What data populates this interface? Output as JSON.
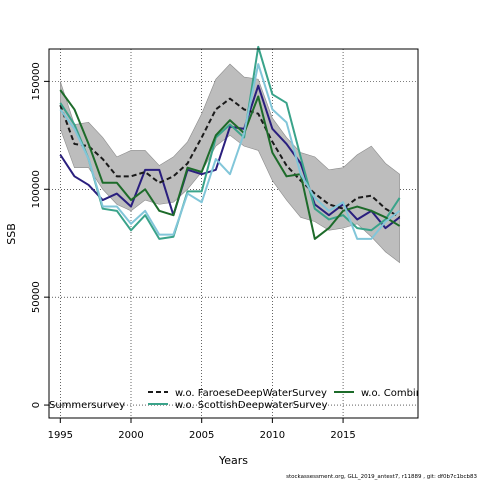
{
  "chart_data": {
    "type": "line",
    "xlabel": "Years",
    "ylabel": "SSB",
    "xlim": [
      1994.2,
      2020.3
    ],
    "ylim": [
      -6000,
      165000
    ],
    "xticks": [
      1995,
      2000,
      2005,
      2010,
      2015
    ],
    "yticks": [
      0,
      50000,
      100000,
      150000
    ],
    "grid": true,
    "x": [
      1995,
      1996,
      1997,
      1998,
      1999,
      2000,
      2001,
      2002,
      2003,
      2004,
      2005,
      2006,
      2007,
      2008,
      2009,
      2010,
      2011,
      2012,
      2013,
      2014,
      2015,
      2016,
      2017,
      2018,
      2019
    ],
    "band": {
      "upper": [
        150000,
        130000,
        131000,
        124000,
        115000,
        118000,
        118000,
        111000,
        115000,
        122000,
        135000,
        151000,
        158000,
        152000,
        151000,
        133000,
        124000,
        117000,
        115000,
        109000,
        110000,
        116000,
        120000,
        112000,
        107000
      ],
      "lower": [
        128000,
        110000,
        110000,
        100000,
        93000,
        90000,
        95000,
        93000,
        94000,
        100000,
        108000,
        120000,
        125000,
        120000,
        118000,
        104000,
        95000,
        87000,
        85000,
        81000,
        82000,
        84000,
        78000,
        71000,
        66000
      ]
    },
    "series": [
      {
        "name": "",
        "color": "#2a1f7e",
        "values": [
          116000,
          106000,
          102000,
          95000,
          98000,
          92000,
          109000,
          109000,
          88000,
          109000,
          107000,
          109000,
          129000,
          128000,
          148000,
          128000,
          121000,
          112000,
          93000,
          88000,
          93000,
          86000,
          90000,
          82000,
          87000
        ]
      },
      {
        "name": "w.o. FaroeseDeepWaterSurvey",
        "color": "#1a1a1a",
        "dashed": true,
        "values": [
          139000,
          121000,
          120000,
          114000,
          106000,
          106000,
          108000,
          103000,
          106000,
          112000,
          124000,
          137000,
          142000,
          137000,
          135000,
          122000,
          111000,
          104000,
          98000,
          93000,
          91000,
          96000,
          97000,
          91000,
          87000
        ]
      },
      {
        "name": "w.o. ScottishDeepwaterSurvey",
        "color": "#3aa38a",
        "values": [
          140000,
          130000,
          114000,
          91000,
          90000,
          81000,
          88000,
          77000,
          78000,
          99000,
          99000,
          124000,
          130000,
          124000,
          166000,
          144000,
          140000,
          115000,
          91000,
          86000,
          88000,
          82000,
          81000,
          86000,
          96000
        ]
      },
      {
        "name": "w.o. CombinedSummersurvey",
        "color": "#1d6b2a",
        "values": [
          146000,
          137000,
          121000,
          103000,
          103000,
          95000,
          100000,
          90000,
          88000,
          110000,
          108000,
          125000,
          132000,
          126000,
          143000,
          117000,
          106000,
          107000,
          77000,
          82000,
          90000,
          92000,
          90000,
          87000,
          83000
        ]
      },
      {
        "name": "",
        "color": "#82c6d9",
        "values": [
          137000,
          128000,
          114000,
          92000,
          92000,
          84000,
          90000,
          79000,
          79000,
          98000,
          94000,
          114000,
          107000,
          126000,
          158000,
          137000,
          131000,
          107000,
          96000,
          90000,
          94000,
          77000,
          77000,
          85000,
          90000
        ]
      }
    ],
    "legend": {
      "placement": "bottom-center",
      "entries": [
        {
          "label": "w.o. FaroeseDeepWaterSurvey",
          "series": 1
        },
        {
          "label": "w.o. Combin",
          "series": 3
        },
        {
          "label": "Summersurvey",
          "series": -1
        },
        {
          "label": "w.o. ScottishDeepwaterSurvey",
          "series": 2
        }
      ]
    },
    "footer": "stockassessment.org, GLL_2019_antest7, r11889 , git: df0b7c1bcb83"
  }
}
